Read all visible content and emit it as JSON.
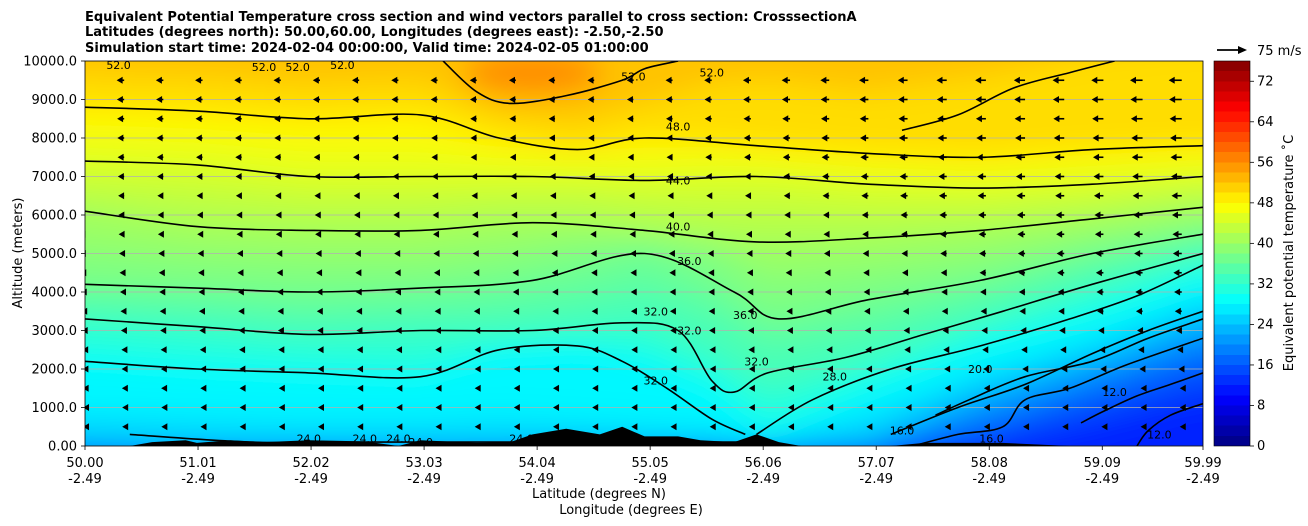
{
  "chart_data": {
    "type": "contour",
    "title_lines": [
      "Equivalent Potential Temperature cross section and wind vectors parallel to cross section: CrosssectionA",
      "Latitudes (degrees north): 50.00,60.00, Longitudes (degrees east): -2.50,-2.50",
      "Simulation start time: 2024-02-04 00:00:00, Valid time: 2024-02-05 01:00:00"
    ],
    "ylabel": "Altitude (meters)",
    "xlabel_lines": [
      "Latitude (degrees N)",
      "Longitude (degrees E)"
    ],
    "xlim": [
      50.0,
      59.99
    ],
    "ylim": [
      0,
      10000
    ],
    "y_ticks": [
      0,
      1000,
      2000,
      3000,
      4000,
      5000,
      6000,
      7000,
      8000,
      9000,
      10000
    ],
    "y_tick_labels": [
      "0.00",
      "1000.0",
      "2000.0",
      "3000.0",
      "4000.0",
      "5000.0",
      "6000.0",
      "7000.0",
      "8000.0",
      "9000.0",
      "10000.0"
    ],
    "x_ticks": [
      50.0,
      51.01,
      52.02,
      53.03,
      54.04,
      55.05,
      56.06,
      57.07,
      58.08,
      59.09,
      59.99
    ],
    "x_tick_labels_lat": [
      "50.00",
      "51.01",
      "52.02",
      "53.03",
      "54.04",
      "55.05",
      "56.06",
      "57.07",
      "58.08",
      "59.09",
      "59.99"
    ],
    "x_tick_labels_lon": [
      "-2.49",
      "-2.49",
      "-2.49",
      "-2.49",
      "-2.49",
      "-2.49",
      "-2.49",
      "-2.49",
      "-2.49",
      "-2.49",
      "-2.49"
    ],
    "grid": "horizontal",
    "colorbar": {
      "label": "Equivalent potential temperature ˚C",
      "min": 0,
      "max": 76,
      "tick_values": [
        0,
        8,
        16,
        24,
        32,
        40,
        48,
        56,
        64,
        72
      ],
      "tick_labels": [
        "0",
        "8",
        "16",
        "24",
        "32",
        "40",
        "48",
        "56",
        "64",
        "72"
      ],
      "colormap": "jet"
    },
    "quiver_key": {
      "label": "75 m/s",
      "speed": 75
    },
    "contours": [
      {
        "level": 12,
        "label": "12.0",
        "points": [
          [
            58.9,
            600
          ],
          [
            59.1,
            900
          ],
          [
            59.4,
            1300
          ],
          [
            59.7,
            1600
          ],
          [
            59.99,
            1900
          ]
        ]
      },
      {
        "level": 12,
        "label": "12.0",
        "points": [
          [
            59.4,
            0
          ],
          [
            59.5,
            400
          ],
          [
            59.7,
            800
          ],
          [
            59.99,
            1100
          ]
        ]
      },
      {
        "level": 16,
        "label": "16.0",
        "points": [
          [
            57.4,
            0
          ],
          [
            57.8,
            300
          ],
          [
            58.2,
            500
          ],
          [
            58.4,
            1200
          ],
          [
            58.8,
            1500
          ],
          [
            59.3,
            2100
          ],
          [
            59.99,
            2800
          ]
        ]
      },
      {
        "level": 20,
        "label": "20.0",
        "points": [
          [
            57.6,
            800
          ],
          [
            57.9,
            1200
          ],
          [
            58.4,
            1800
          ],
          [
            59.0,
            2200
          ],
          [
            59.5,
            2800
          ],
          [
            59.99,
            3300
          ]
        ]
      },
      {
        "level": 24,
        "label": "24.0",
        "points": [
          [
            50.4,
            300
          ],
          [
            51.5,
            100
          ],
          [
            52.5,
            100
          ],
          [
            53.5,
            100
          ],
          [
            54.5,
            100
          ],
          [
            55.5,
            100
          ],
          [
            56.0,
            100
          ]
        ]
      },
      {
        "level": 24,
        "label": "24.0",
        "points": [
          [
            57.2,
            300
          ],
          [
            57.8,
            1000
          ],
          [
            58.4,
            1600
          ],
          [
            59.0,
            2400
          ],
          [
            59.5,
            3000
          ],
          [
            59.99,
            3500
          ]
        ]
      },
      {
        "level": 28,
        "label": "28.0",
        "points": [
          [
            56.0,
            300
          ],
          [
            56.5,
            1200
          ],
          [
            57.2,
            2000
          ],
          [
            58.0,
            2600
          ],
          [
            58.8,
            3300
          ],
          [
            59.4,
            3900
          ],
          [
            59.99,
            4700
          ]
        ]
      },
      {
        "level": 32,
        "label": "32.0",
        "points": [
          [
            50.0,
            2200
          ],
          [
            51.0,
            2000
          ],
          [
            52.0,
            1900
          ],
          [
            53.0,
            1800
          ],
          [
            53.7,
            2500
          ],
          [
            54.4,
            2600
          ],
          [
            54.8,
            2200
          ],
          [
            55.2,
            1500
          ],
          [
            55.6,
            700
          ],
          [
            55.9,
            300
          ]
        ]
      },
      {
        "level": 32,
        "label": "32.0",
        "points": [
          [
            50.0,
            3300
          ],
          [
            51.0,
            3100
          ],
          [
            52.0,
            2900
          ],
          [
            53.0,
            3000
          ],
          [
            54.0,
            3000
          ],
          [
            54.8,
            3200
          ],
          [
            55.3,
            3000
          ],
          [
            55.6,
            1700
          ],
          [
            55.8,
            1400
          ],
          [
            56.1,
            1900
          ],
          [
            56.8,
            2300
          ],
          [
            57.5,
            2900
          ],
          [
            58.2,
            3500
          ],
          [
            59.0,
            4200
          ],
          [
            59.99,
            5000
          ]
        ]
      },
      {
        "level": 36,
        "label": "36.0",
        "points": [
          [
            50.0,
            4200
          ],
          [
            51.0,
            4100
          ],
          [
            52.0,
            4000
          ],
          [
            53.0,
            4100
          ],
          [
            54.0,
            4300
          ],
          [
            55.0,
            5000
          ],
          [
            55.8,
            4000
          ],
          [
            56.2,
            3300
          ],
          [
            57.0,
            3800
          ],
          [
            58.0,
            4300
          ],
          [
            59.0,
            5000
          ],
          [
            59.99,
            5500
          ]
        ]
      },
      {
        "level": 40,
        "label": "40.0",
        "points": [
          [
            50.0,
            6100
          ],
          [
            51.0,
            5700
          ],
          [
            52.0,
            5600
          ],
          [
            53.0,
            5600
          ],
          [
            54.0,
            5800
          ],
          [
            55.0,
            5600
          ],
          [
            56.0,
            5300
          ],
          [
            57.0,
            5400
          ],
          [
            58.0,
            5600
          ],
          [
            59.0,
            5900
          ],
          [
            59.99,
            6200
          ]
        ]
      },
      {
        "level": 44,
        "label": "44.0",
        "points": [
          [
            50.0,
            7400
          ],
          [
            51.0,
            7300
          ],
          [
            52.0,
            7000
          ],
          [
            53.0,
            7000
          ],
          [
            54.0,
            7000
          ],
          [
            55.0,
            6900
          ],
          [
            56.0,
            7000
          ],
          [
            57.0,
            6800
          ],
          [
            58.0,
            6700
          ],
          [
            59.0,
            6800
          ],
          [
            59.99,
            7000
          ]
        ]
      },
      {
        "level": 48,
        "label": "48.0",
        "points": [
          [
            50.0,
            8800
          ],
          [
            51.0,
            8700
          ],
          [
            52.0,
            8500
          ],
          [
            53.0,
            8600
          ],
          [
            53.7,
            8000
          ],
          [
            54.4,
            7700
          ],
          [
            55.0,
            8000
          ],
          [
            56.0,
            7800
          ],
          [
            57.0,
            7600
          ],
          [
            58.0,
            7500
          ],
          [
            59.0,
            7700
          ],
          [
            59.99,
            7800
          ]
        ]
      },
      {
        "level": 52,
        "label": "52.0",
        "points": [
          [
            53.2,
            10000
          ],
          [
            53.5,
            9200
          ],
          [
            53.8,
            8900
          ],
          [
            54.3,
            9100
          ],
          [
            54.8,
            9500
          ],
          [
            55.0,
            9800
          ],
          [
            55.3,
            10000
          ]
        ]
      },
      {
        "level": 48,
        "label": "48.0",
        "points": [
          [
            57.3,
            8200
          ],
          [
            57.8,
            8600
          ],
          [
            58.3,
            9300
          ],
          [
            58.8,
            9700
          ],
          [
            59.2,
            10000
          ]
        ]
      }
    ],
    "contour_labels": [
      {
        "text": "52.0",
        "lat": 50.3,
        "alt": 9900
      },
      {
        "text": "52.0",
        "lat": 51.6,
        "alt": 9850
      },
      {
        "text": "52.0",
        "lat": 51.9,
        "alt": 9850
      },
      {
        "text": "52.0",
        "lat": 52.3,
        "alt": 9900
      },
      {
        "text": "52.0",
        "lat": 54.9,
        "alt": 9600
      },
      {
        "text": "52.0",
        "lat": 55.6,
        "alt": 9700
      },
      {
        "text": "48.0",
        "lat": 55.3,
        "alt": 8300
      },
      {
        "text": "44.0",
        "lat": 55.3,
        "alt": 6900
      },
      {
        "text": "40.0",
        "lat": 55.3,
        "alt": 5700
      },
      {
        "text": "36.0",
        "lat": 55.4,
        "alt": 4800
      },
      {
        "text": "36.0",
        "lat": 55.9,
        "alt": 3400
      },
      {
        "text": "32.0",
        "lat": 55.1,
        "alt": 3500
      },
      {
        "text": "32.0",
        "lat": 55.4,
        "alt": 3000
      },
      {
        "text": "32.0",
        "lat": 56.0,
        "alt": 2200
      },
      {
        "text": "32.0",
        "lat": 55.1,
        "alt": 1700
      },
      {
        "text": "28.0",
        "lat": 56.7,
        "alt": 1800
      },
      {
        "text": "24.0",
        "lat": 52.0,
        "alt": 200
      },
      {
        "text": "24.0",
        "lat": 52.5,
        "alt": 200
      },
      {
        "text": "24.0",
        "lat": 52.8,
        "alt": 200
      },
      {
        "text": "24.0",
        "lat": 53.0,
        "alt": 100
      },
      {
        "text": "24.0",
        "lat": 53.9,
        "alt": 200
      },
      {
        "text": "20.0",
        "lat": 58.0,
        "alt": 2000
      },
      {
        "text": "16.0",
        "lat": 57.3,
        "alt": 400
      },
      {
        "text": "16.0",
        "lat": 58.1,
        "alt": 200
      },
      {
        "text": "12.0",
        "lat": 59.2,
        "alt": 1400
      },
      {
        "text": "12.0",
        "lat": 59.6,
        "alt": 300
      }
    ],
    "terrain": [
      [
        50.0,
        0
      ],
      [
        50.4,
        0
      ],
      [
        50.6,
        100
      ],
      [
        50.9,
        150
      ],
      [
        51.0,
        80
      ],
      [
        51.3,
        150
      ],
      [
        51.6,
        100
      ],
      [
        52.0,
        150
      ],
      [
        52.5,
        120
      ],
      [
        52.8,
        0
      ],
      [
        53.0,
        150
      ],
      [
        53.5,
        80
      ],
      [
        53.8,
        100
      ],
      [
        54.0,
        300
      ],
      [
        54.3,
        450
      ],
      [
        54.6,
        300
      ],
      [
        54.8,
        500
      ],
      [
        55.0,
        250
      ],
      [
        55.3,
        250
      ],
      [
        55.5,
        150
      ],
      [
        55.8,
        100
      ],
      [
        56.0,
        300
      ],
      [
        56.2,
        100
      ],
      [
        56.4,
        0
      ],
      [
        57.2,
        0
      ],
      [
        57.5,
        80
      ],
      [
        58.2,
        80
      ],
      [
        58.8,
        0
      ],
      [
        59.99,
        0
      ]
    ],
    "wind": {
      "description": "Horizontal wind component parallel to cross section; negative = toward lower latitude (left).",
      "lat_columns": [
        50.0,
        50.35,
        50.7,
        51.05,
        51.4,
        51.75,
        52.1,
        52.45,
        52.8,
        53.15,
        53.5,
        53.85,
        54.2,
        54.55,
        54.9,
        55.25,
        55.6,
        55.95,
        56.3,
        56.65,
        57.0,
        57.35,
        57.7,
        58.05,
        58.4,
        58.75,
        59.1,
        59.45,
        59.8
      ],
      "alt_rows": [
        500,
        1000,
        1500,
        2000,
        2500,
        3000,
        3500,
        4000,
        4500,
        5000,
        5500,
        6000,
        6500,
        7000,
        7500,
        8000,
        8500,
        9000,
        9500
      ],
      "speed_profile_ms": {
        "alt": [
          500,
          1500,
          2500,
          3500,
          4500,
          5500,
          6500,
          7500,
          8500,
          9500
        ],
        "u_left": [
          -3,
          -5,
          -6,
          -8,
          -10,
          -12,
          -13,
          -14,
          -15,
          -16
        ],
        "u_mid": [
          -2,
          -3,
          -4,
          -5,
          -6,
          -8,
          -10,
          -12,
          -13,
          -14
        ],
        "u_right": [
          -1,
          -4,
          -10,
          -15,
          -18,
          -20,
          -22,
          -24,
          -26,
          -28
        ]
      }
    }
  }
}
